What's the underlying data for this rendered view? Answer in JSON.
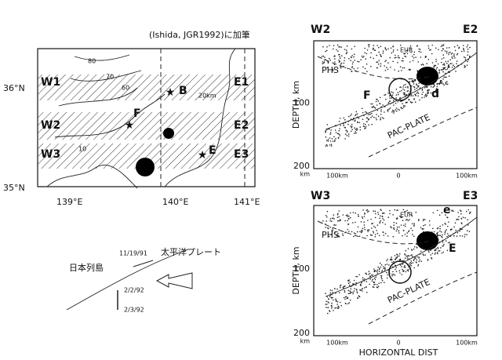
{
  "caption": "(Ishida, JGR1992)に加筆",
  "map": {
    "profiles": [
      {
        "west": "W1",
        "east": "E1"
      },
      {
        "west": "W2",
        "east": "E2"
      },
      {
        "west": "W3",
        "east": "E3"
      }
    ],
    "lat_labels": [
      "36°N",
      "35°N"
    ],
    "lon_labels": [
      "139°E",
      "140°E",
      "141°E"
    ],
    "contours": [
      "80",
      "70",
      "60",
      "20km",
      "10"
    ],
    "events": [
      "B",
      "F",
      "E"
    ]
  },
  "sketch": {
    "labels": [
      "日本列島",
      "太平洋プレート"
    ],
    "dates": [
      "11/19/91",
      "2/2/92",
      "2/3/92"
    ]
  },
  "sections": [
    {
      "west": "W2",
      "east": "E2",
      "plates": [
        "EUR",
        "PHS",
        "PAC-PLATE"
      ],
      "events": [
        "F",
        "d"
      ],
      "y_label": "DEPTH, km",
      "y_ticks": [
        "100",
        "200"
      ],
      "y_unit": "km",
      "x_ticks": [
        "100km",
        "0",
        "100km"
      ]
    },
    {
      "west": "W3",
      "east": "E3",
      "plates": [
        "EUR",
        "PHS",
        "PAC-PLATE"
      ],
      "events": [
        "e",
        "E"
      ],
      "y_label": "DEPTH, km",
      "y_ticks": [
        "100",
        "200"
      ],
      "y_unit": "km",
      "x_ticks": [
        "100km",
        "0",
        "100km"
      ],
      "x_label": "HORIZONTAL DIST"
    }
  ]
}
